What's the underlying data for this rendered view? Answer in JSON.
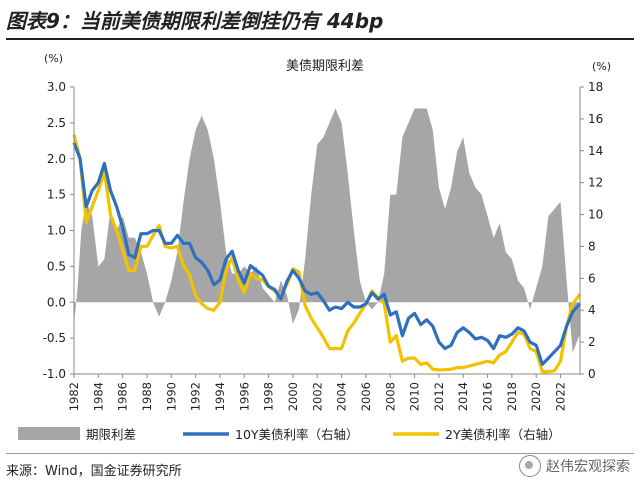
{
  "page": {
    "title": "图表9：当前美债期限利差倒挂仍有 44bp",
    "source": "来源：Wind，国金证券研究所",
    "watermark": "赵伟宏观探索"
  },
  "chart_data": {
    "type": "area+line",
    "title": "美债期限利差",
    "left_axis": {
      "unit": "(%)",
      "min": -1.0,
      "max": 3.0,
      "ticks": [
        "3.0",
        "2.5",
        "2.0",
        "1.5",
        "1.0",
        "0.5",
        "0.0",
        "-0.5",
        "-1.0"
      ]
    },
    "right_axis": {
      "unit": "(%)",
      "min": 0,
      "max": 18,
      "ticks": [
        "18",
        "16",
        "14",
        "12",
        "10",
        "8",
        "6",
        "4",
        "2",
        "0"
      ]
    },
    "x_axis": {
      "min": 1982,
      "max": 2023.6,
      "ticks": [
        "1982",
        "1984",
        "1986",
        "1988",
        "1990",
        "1992",
        "1994",
        "1996",
        "1998",
        "2000",
        "2002",
        "2004",
        "2006",
        "2008",
        "2010",
        "2012",
        "2014",
        "2016",
        "2018",
        "2020",
        "2022"
      ]
    },
    "colors": {
      "spread": "#a6a6a6",
      "ten_year": "#2e6fbf",
      "two_year": "#f2c200"
    },
    "legend": [
      "期限利差",
      "10Y美债利率（右轴）",
      "2Y美债利率（右轴）"
    ],
    "series": [
      {
        "name": "期限利差",
        "axis": "left",
        "kind": "area",
        "x": [
          1982.0,
          1982.3,
          1982.6,
          1983.0,
          1983.5,
          1984.0,
          1984.5,
          1985.0,
          1985.5,
          1986.0,
          1986.5,
          1987.0,
          1987.5,
          1988.0,
          1988.5,
          1989.0,
          1989.5,
          1990.0,
          1990.5,
          1991.0,
          1991.5,
          1992.0,
          1992.5,
          1993.0,
          1993.5,
          1994.0,
          1994.5,
          1995.0,
          1995.5,
          1996.0,
          1996.5,
          1997.0,
          1997.5,
          1998.0,
          1998.5,
          1999.0,
          1999.5,
          2000.0,
          2000.5,
          2001.0,
          2001.5,
          2002.0,
          2002.5,
          2003.0,
          2003.5,
          2004.0,
          2004.5,
          2005.0,
          2005.5,
          2006.0,
          2006.5,
          2007.0,
          2007.5,
          2008.0,
          2008.5,
          2009.0,
          2009.5,
          2010.0,
          2010.5,
          2011.0,
          2011.5,
          2012.0,
          2012.5,
          2013.0,
          2013.5,
          2014.0,
          2014.5,
          2015.0,
          2015.5,
          2016.0,
          2016.5,
          2017.0,
          2017.5,
          2018.0,
          2018.5,
          2019.0,
          2019.5,
          2020.0,
          2020.5,
          2021.0,
          2021.5,
          2022.0,
          2022.5,
          2023.0,
          2023.6
        ],
        "values": [
          -0.3,
          0.2,
          1.0,
          1.4,
          1.2,
          0.5,
          0.6,
          1.3,
          1.0,
          1.2,
          0.9,
          0.9,
          0.7,
          0.4,
          0.0,
          -0.2,
          0.0,
          0.3,
          0.7,
          1.4,
          2.0,
          2.4,
          2.6,
          2.4,
          2.0,
          1.4,
          0.7,
          0.4,
          0.4,
          0.5,
          0.4,
          0.5,
          0.2,
          0.1,
          0.0,
          0.3,
          0.1,
          -0.3,
          -0.1,
          0.6,
          1.5,
          2.2,
          2.3,
          2.5,
          2.7,
          2.5,
          1.8,
          1.0,
          0.3,
          0.0,
          -0.1,
          0.0,
          0.4,
          1.5,
          1.5,
          2.3,
          2.5,
          2.7,
          2.7,
          2.7,
          2.4,
          1.6,
          1.3,
          1.6,
          2.1,
          2.3,
          1.8,
          1.6,
          1.5,
          1.2,
          0.9,
          1.1,
          0.7,
          0.6,
          0.3,
          0.2,
          -0.1,
          0.2,
          0.5,
          1.2,
          1.3,
          1.4,
          0.3,
          -0.7,
          -0.44
        ]
      },
      {
        "name": "10Y美债利率（右轴）",
        "axis": "right",
        "kind": "line",
        "x": [
          1982.0,
          1982.5,
          1983.0,
          1983.5,
          1984.0,
          1984.5,
          1985.0,
          1985.5,
          1986.0,
          1986.5,
          1987.0,
          1987.5,
          1988.0,
          1988.5,
          1989.0,
          1989.5,
          1990.0,
          1990.5,
          1991.0,
          1991.5,
          1992.0,
          1992.5,
          1993.0,
          1993.5,
          1994.0,
          1994.5,
          1995.0,
          1995.5,
          1996.0,
          1996.5,
          1997.0,
          1997.5,
          1998.0,
          1998.5,
          1999.0,
          1999.5,
          2000.0,
          2000.5,
          2001.0,
          2001.5,
          2002.0,
          2002.5,
          2003.0,
          2003.5,
          2004.0,
          2004.5,
          2005.0,
          2005.5,
          2006.0,
          2006.5,
          2007.0,
          2007.5,
          2008.0,
          2008.5,
          2009.0,
          2009.5,
          2010.0,
          2010.5,
          2011.0,
          2011.5,
          2012.0,
          2012.5,
          2013.0,
          2013.5,
          2014.0,
          2014.5,
          2015.0,
          2015.5,
          2016.0,
          2016.5,
          2017.0,
          2017.5,
          2018.0,
          2018.5,
          2019.0,
          2019.5,
          2020.0,
          2020.5,
          2021.0,
          2021.5,
          2022.0,
          2022.5,
          2023.0,
          2023.6
        ],
        "values": [
          14.5,
          13.5,
          10.5,
          11.5,
          12.0,
          13.2,
          11.5,
          10.5,
          9.2,
          7.5,
          7.3,
          8.8,
          8.8,
          9.0,
          9.0,
          8.2,
          8.2,
          8.7,
          8.2,
          8.2,
          7.3,
          7.0,
          6.5,
          5.6,
          5.9,
          7.2,
          7.7,
          6.5,
          5.7,
          6.8,
          6.5,
          6.2,
          5.5,
          5.3,
          4.7,
          5.8,
          6.5,
          6.0,
          5.2,
          5.0,
          5.1,
          4.6,
          4.0,
          4.2,
          4.1,
          4.5,
          4.2,
          4.2,
          4.4,
          5.1,
          4.7,
          5.0,
          3.7,
          3.9,
          2.4,
          3.5,
          3.8,
          3.1,
          3.4,
          3.0,
          2.0,
          1.6,
          1.8,
          2.6,
          2.9,
          2.6,
          2.2,
          2.3,
          2.1,
          1.6,
          2.4,
          2.3,
          2.5,
          2.9,
          2.7,
          2.0,
          1.8,
          0.6,
          1.0,
          1.4,
          1.8,
          3.0,
          3.9,
          4.4
        ]
      },
      {
        "name": "2Y美债利率（右轴）",
        "axis": "right",
        "kind": "line",
        "x": [
          1982.0,
          1982.5,
          1983.0,
          1983.5,
          1984.0,
          1984.5,
          1985.0,
          1985.5,
          1986.0,
          1986.5,
          1987.0,
          1987.5,
          1988.0,
          1988.5,
          1989.0,
          1989.5,
          1990.0,
          1990.5,
          1991.0,
          1991.5,
          1992.0,
          1992.5,
          1993.0,
          1993.5,
          1994.0,
          1994.5,
          1995.0,
          1995.5,
          1996.0,
          1996.5,
          1997.0,
          1997.5,
          1998.0,
          1998.5,
          1999.0,
          1999.5,
          2000.0,
          2000.5,
          2001.0,
          2001.5,
          2002.0,
          2002.5,
          2003.0,
          2003.5,
          2004.0,
          2004.5,
          2005.0,
          2005.5,
          2006.0,
          2006.5,
          2007.0,
          2007.5,
          2008.0,
          2008.5,
          2009.0,
          2009.5,
          2010.0,
          2010.5,
          2011.0,
          2011.5,
          2012.0,
          2012.5,
          2013.0,
          2013.5,
          2014.0,
          2014.5,
          2015.0,
          2015.5,
          2016.0,
          2016.5,
          2017.0,
          2017.5,
          2018.0,
          2018.5,
          2019.0,
          2019.5,
          2020.0,
          2020.5,
          2021.0,
          2021.5,
          2022.0,
          2022.5,
          2023.0,
          2023.6
        ],
        "values": [
          15.0,
          13.5,
          9.5,
          10.5,
          11.5,
          12.7,
          10.0,
          9.0,
          7.8,
          6.5,
          6.5,
          8.0,
          8.0,
          8.7,
          9.3,
          8.0,
          7.9,
          8.0,
          6.8,
          6.2,
          4.9,
          4.4,
          4.1,
          4.0,
          4.5,
          6.5,
          7.3,
          5.9,
          5.1,
          6.3,
          6.0,
          5.9,
          5.5,
          5.2,
          4.9,
          5.6,
          6.6,
          6.4,
          4.3,
          3.5,
          2.9,
          2.3,
          1.6,
          1.6,
          1.6,
          2.7,
          3.2,
          3.8,
          4.4,
          5.2,
          4.8,
          4.4,
          2.0,
          2.4,
          0.8,
          1.0,
          1.0,
          0.6,
          0.7,
          0.3,
          0.25,
          0.27,
          0.3,
          0.4,
          0.4,
          0.5,
          0.6,
          0.7,
          0.8,
          0.7,
          1.2,
          1.4,
          2.0,
          2.6,
          2.5,
          1.6,
          1.4,
          0.15,
          0.15,
          0.2,
          0.8,
          3.0,
          4.4,
          5.0
        ]
      }
    ]
  }
}
